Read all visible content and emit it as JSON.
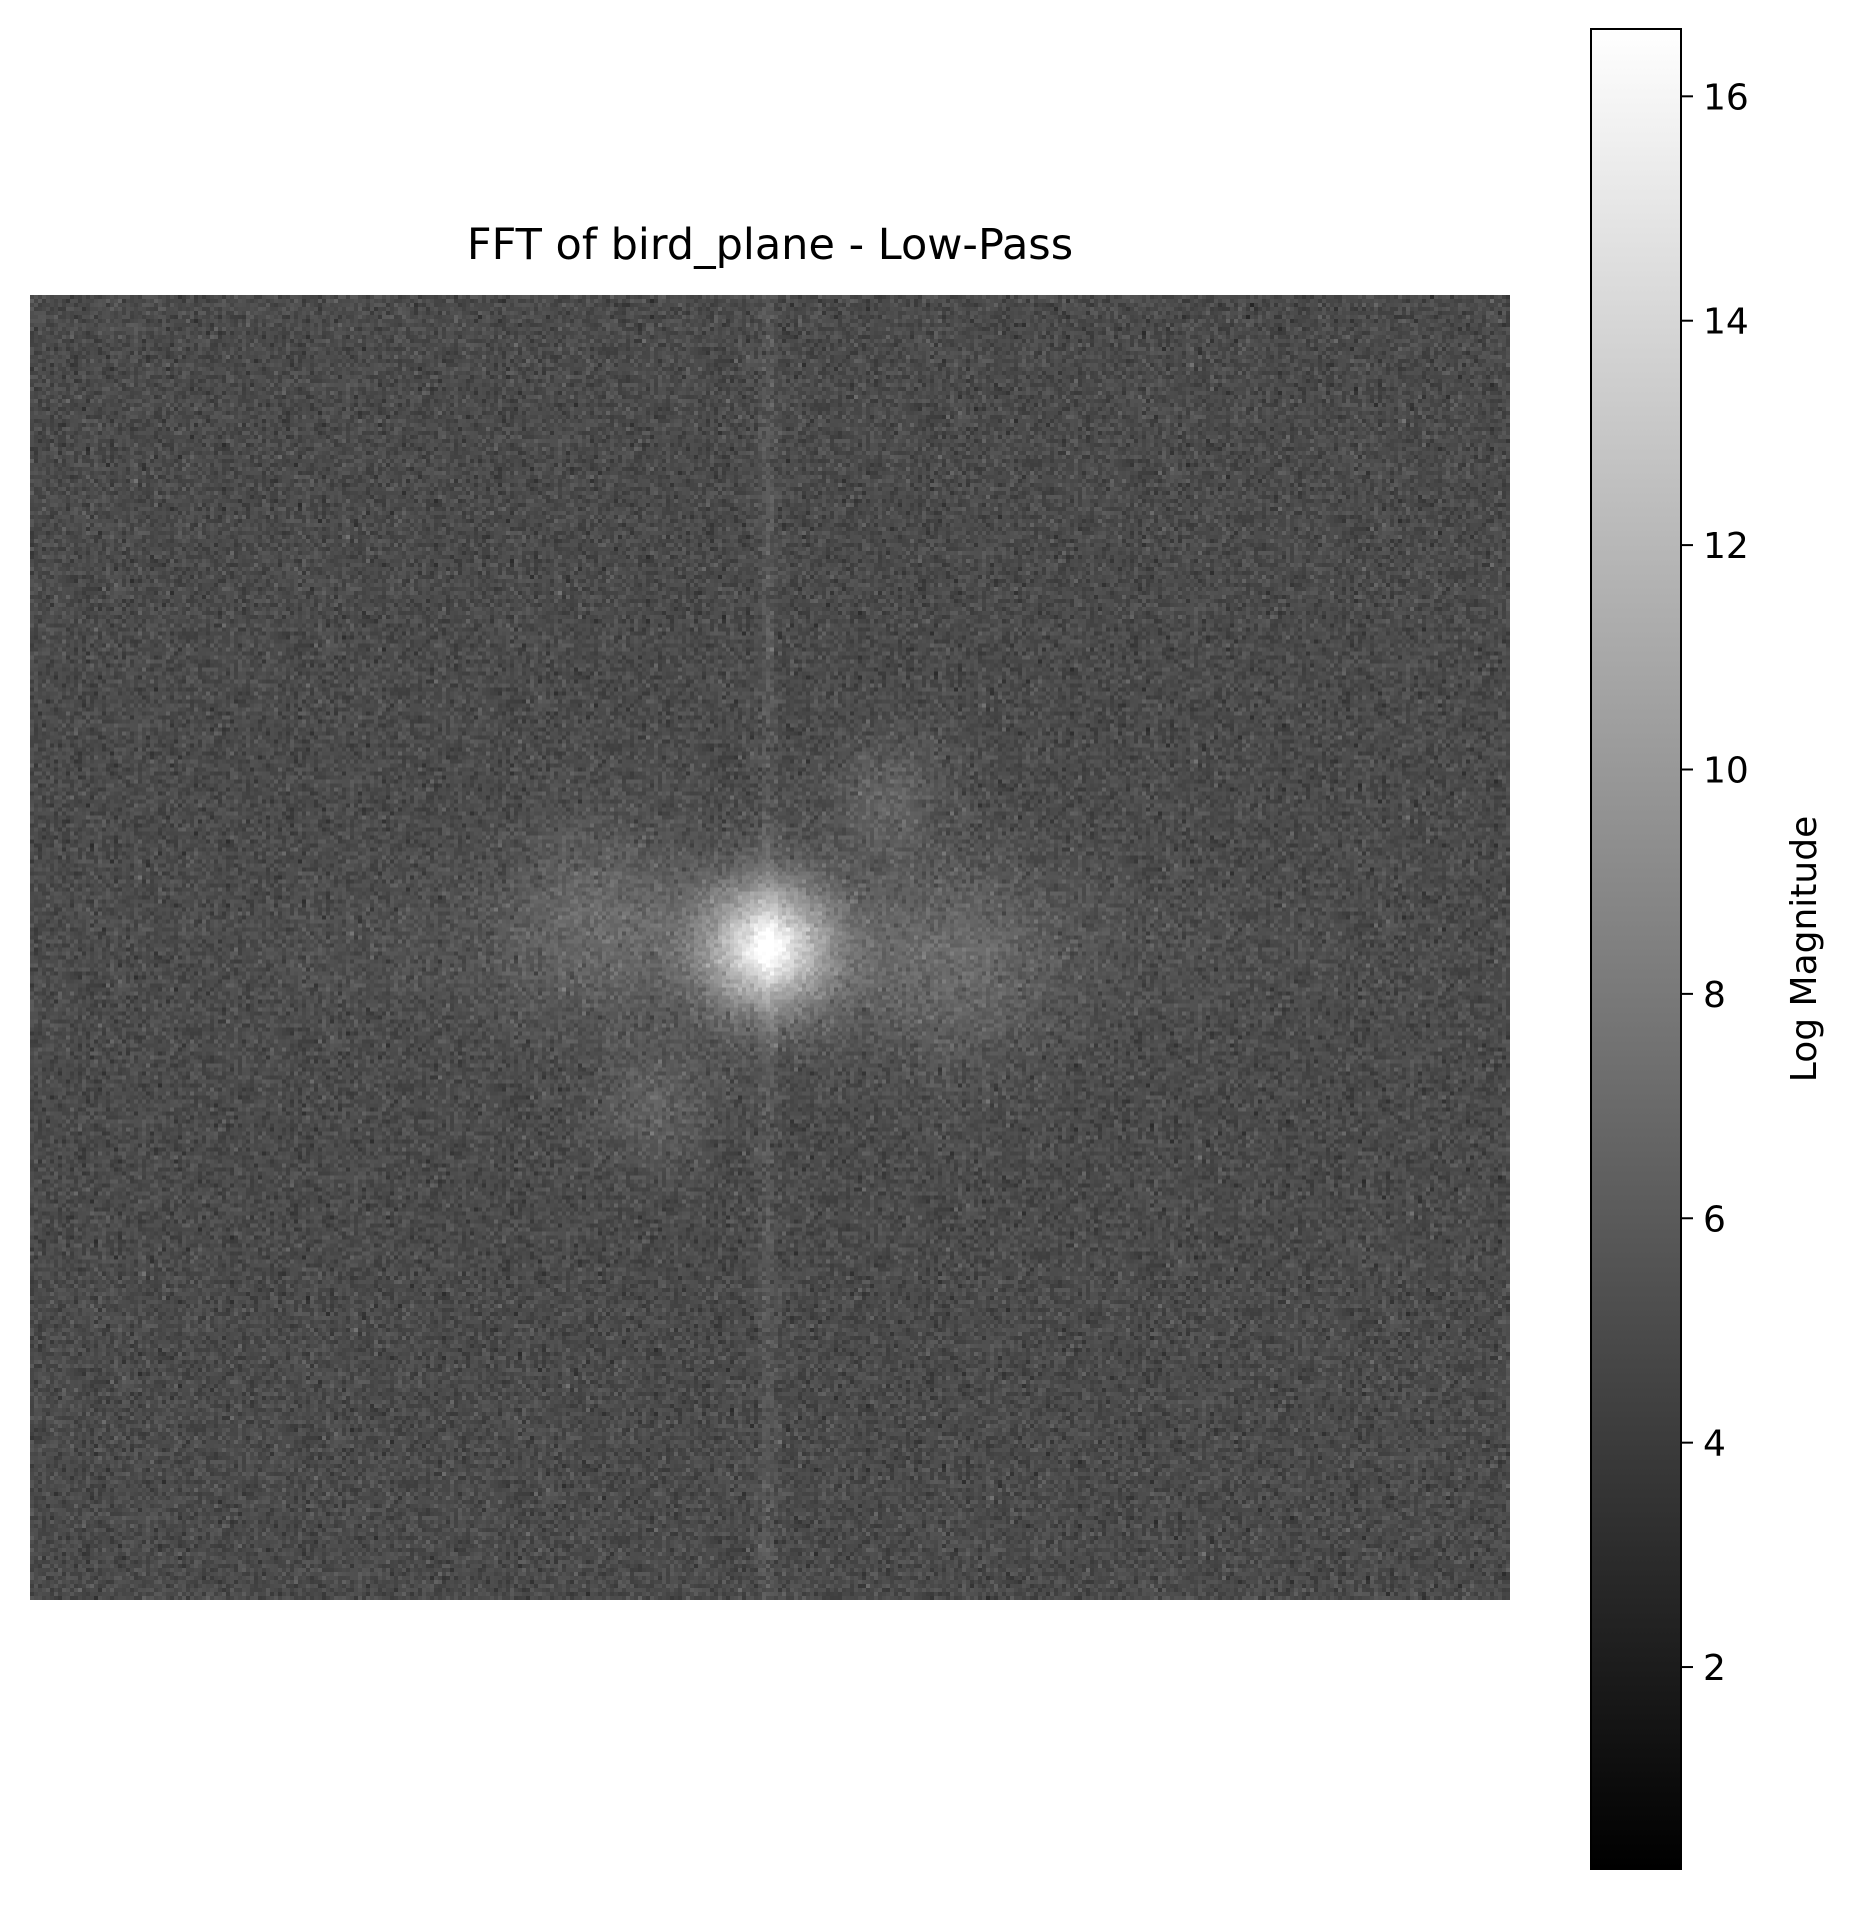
{
  "chart_data": {
    "type": "heatmap",
    "title": "FFT of bird_plane - Low-Pass",
    "colormap": "gray",
    "axes_visible": false,
    "grid": false,
    "description_of_field": "log-magnitude 2D FFT spectrum, bright low-frequency blob at center with faint vertical streak and diagonal arms on dark noisy background",
    "field": {
      "background_mean": 5.0,
      "background_noise": 0.6,
      "center_peak": 16.6,
      "center_blob_value": 14.5,
      "vertical_streak_value": 6.0,
      "arm_value": 6.8
    },
    "colorbar": {
      "label": "Log Magnitude",
      "range": [
        0.2,
        16.6
      ],
      "ticks": [
        2,
        4,
        6,
        8,
        10,
        12,
        14,
        16
      ],
      "tick_labels": [
        "2",
        "4",
        "6",
        "8",
        "10",
        "12",
        "14",
        "16"
      ],
      "colors": {
        "low": "#000000",
        "high": "#ffffff"
      }
    }
  }
}
